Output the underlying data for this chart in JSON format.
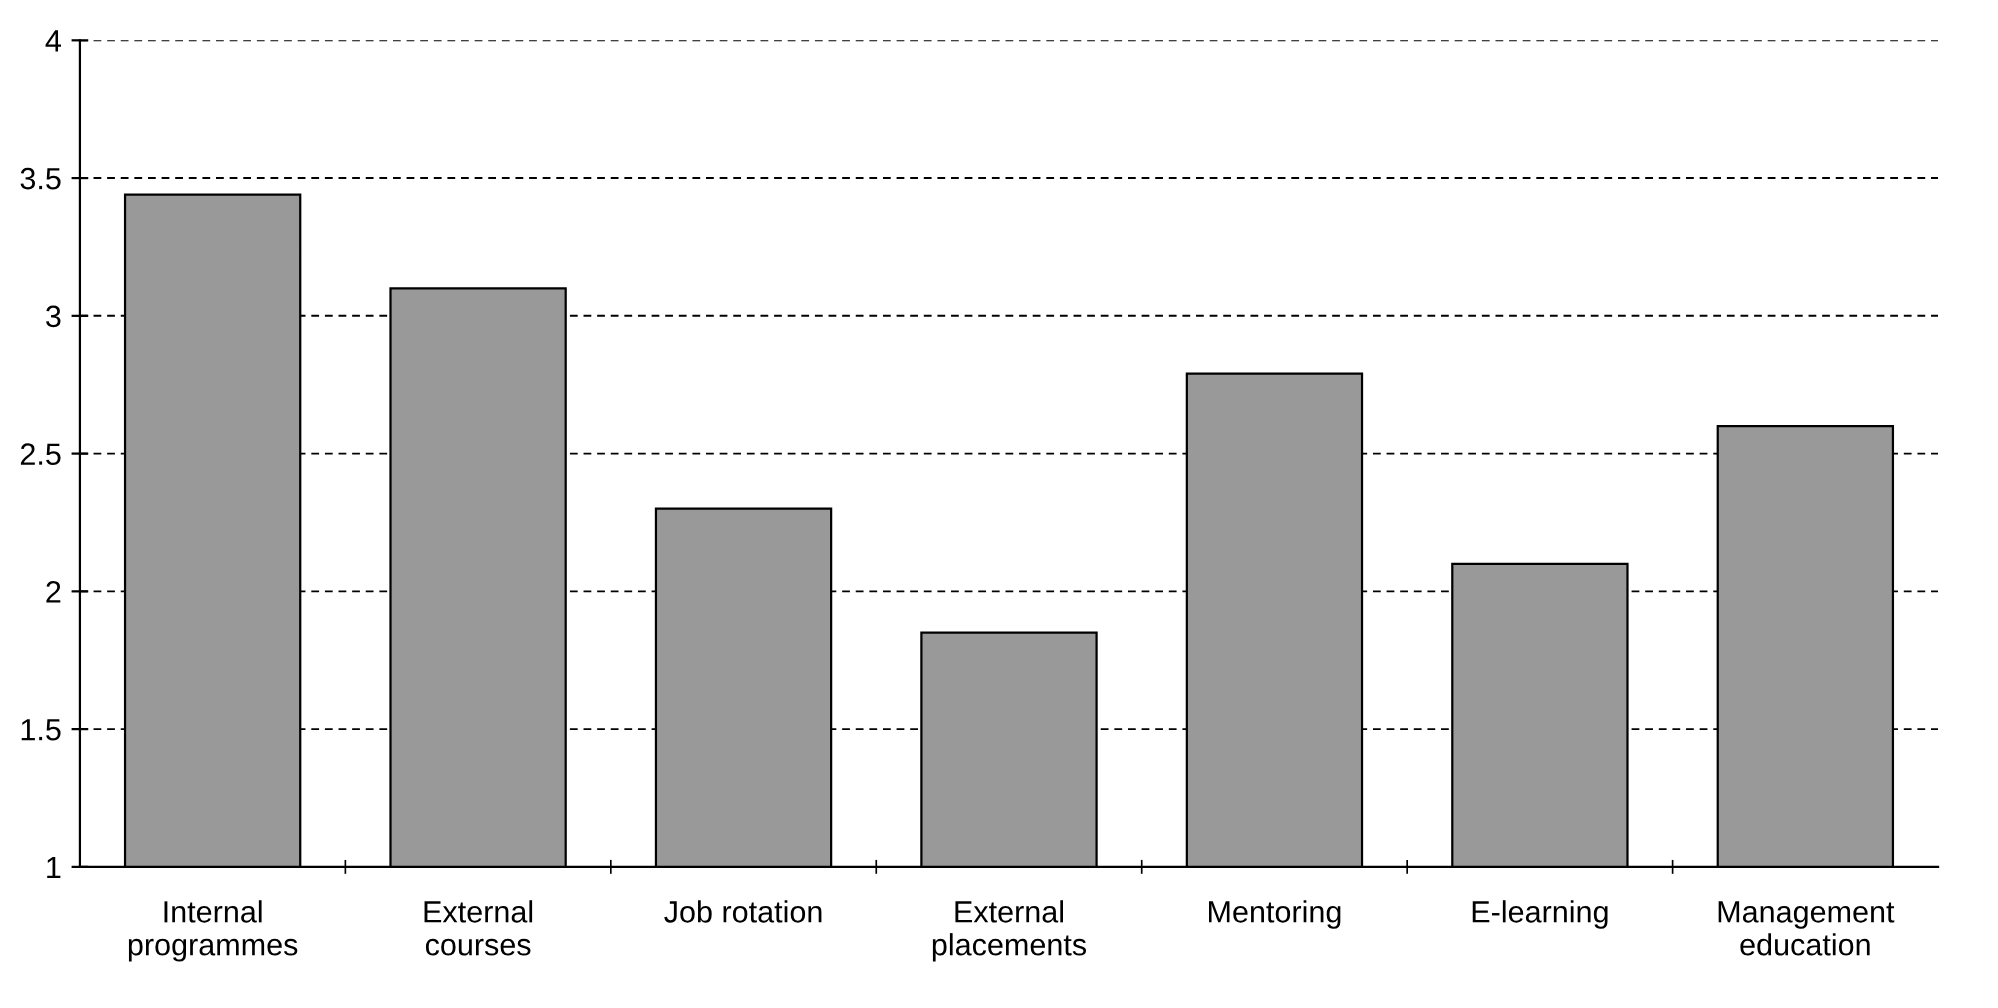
{
  "chart_data": {
    "type": "bar",
    "categories": [
      "Internal\nprogrammes",
      "External\ncourses",
      "Job rotation",
      "External\nplacements",
      "Mentoring",
      "E-learning",
      "Management\neducation"
    ],
    "values": [
      3.44,
      3.1,
      2.3,
      1.85,
      2.79,
      2.1,
      2.6
    ],
    "color": "#999999",
    "ylim": [
      1,
      4
    ],
    "yticks": [
      1,
      1.5,
      2,
      2.5,
      3,
      3.5,
      4
    ],
    "grid": "y",
    "line_style": "dashed"
  }
}
